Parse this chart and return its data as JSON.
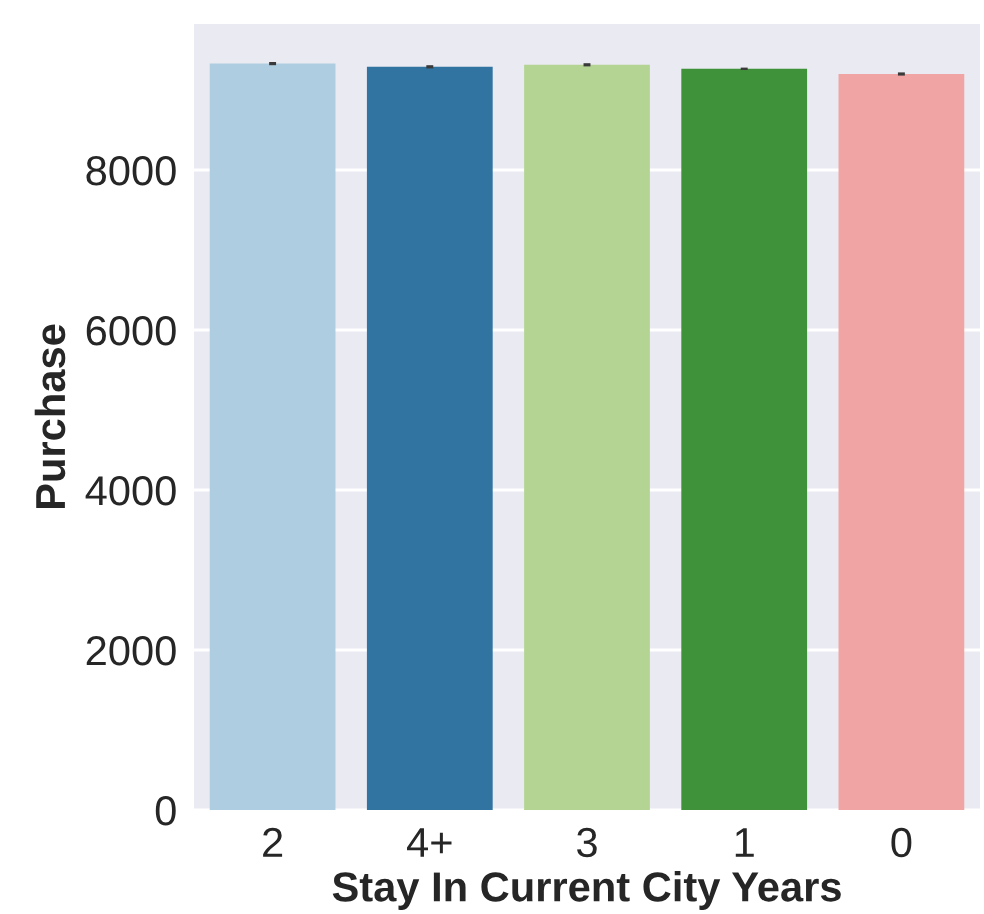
{
  "chart_data": {
    "type": "bar",
    "xlabel": "Stay In Current City Years",
    "ylabel": "Purchase",
    "categories": [
      "2",
      "4+",
      "3",
      "1",
      "0"
    ],
    "values": [
      9330,
      9290,
      9315,
      9265,
      9200
    ],
    "errors": [
      20,
      20,
      20,
      15,
      20
    ],
    "colors": [
      "#aecde0",
      "#3174a1",
      "#b4d493",
      "#3f923a",
      "#f0a4a4"
    ],
    "ylim": [
      0,
      9825
    ],
    "yticks": [
      0,
      2000,
      4000,
      6000,
      8000
    ],
    "grid": "y"
  }
}
